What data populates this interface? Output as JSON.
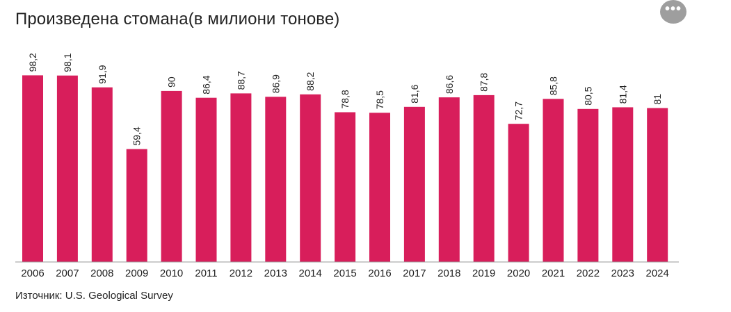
{
  "title": "Произведена стомана(в милиони тонове)",
  "source": "Източник: U.S. Geological Survey",
  "menu_icon": "more-horizontal-icon",
  "colors": {
    "bar": "#d81e5b",
    "axis": "#9a9a9a",
    "text": "#222222",
    "menu_bg": "#9e9e9e"
  },
  "chart_data": {
    "type": "bar",
    "categories": [
      "2006",
      "2007",
      "2008",
      "2009",
      "2010",
      "2011",
      "2012",
      "2013",
      "2014",
      "2015",
      "2016",
      "2017",
      "2018",
      "2019",
      "2020",
      "2021",
      "2022",
      "2023",
      "2024"
    ],
    "values": [
      98.2,
      98.1,
      91.9,
      59.4,
      90,
      86.4,
      88.7,
      86.9,
      88.2,
      78.8,
      78.5,
      81.6,
      86.6,
      87.8,
      72.7,
      85.8,
      80.5,
      81.4,
      81
    ],
    "value_labels": [
      "98,2",
      "98,1",
      "91,9",
      "59,4",
      "90",
      "86,4",
      "88,7",
      "86,9",
      "88,2",
      "78,8",
      "78,5",
      "81,6",
      "86,6",
      "87,8",
      "72,7",
      "85,8",
      "80,5",
      "81,4",
      "81"
    ],
    "title": "Произведена стомана(в милиони тонове)",
    "xlabel": "",
    "ylabel": "",
    "ylim": [
      0,
      100
    ],
    "grid": false,
    "legend": "none"
  }
}
